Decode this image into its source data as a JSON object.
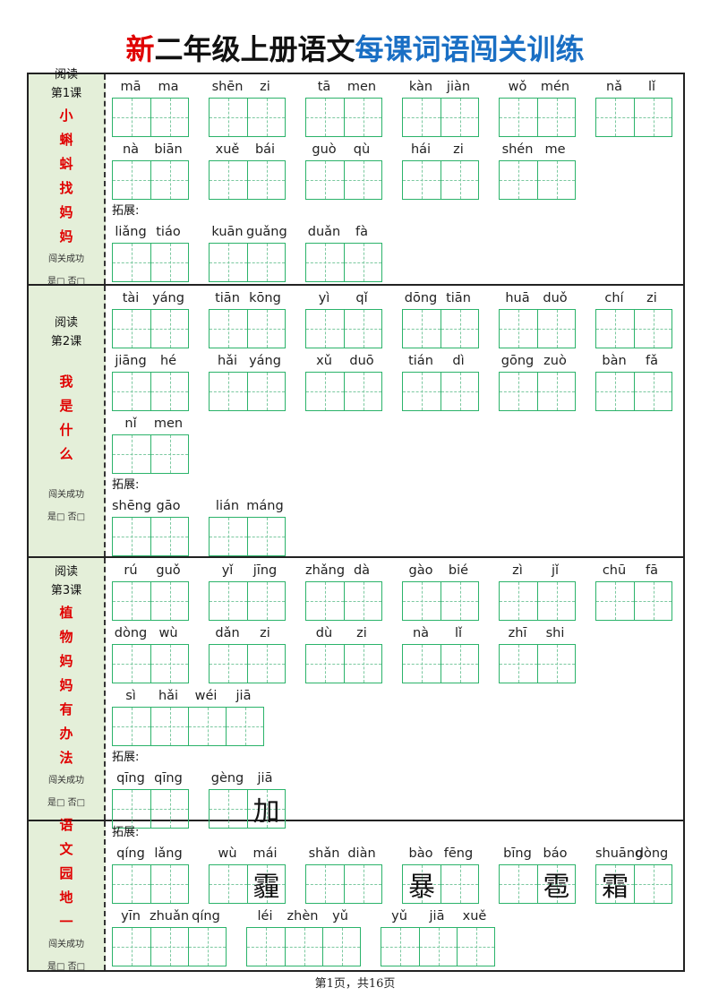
{
  "title": {
    "part1": "新",
    "part2": "二年级上册语文",
    "part3": "每课词语闯关训练"
  },
  "colors": {
    "red": "#e00000",
    "blue": "#1a6fc4",
    "grid": "#2bb36a",
    "side_bg": "#e4efd9"
  },
  "extension_label": "拓展:",
  "footer": "第1页，共16页",
  "sections": [
    {
      "reading": "阅读",
      "lesson": "第1课",
      "title_chars": [
        "小",
        "蝌",
        "蚪",
        "找",
        "妈",
        "妈"
      ],
      "success": "闯关成功",
      "yes_no": "是□  否□",
      "rows": [
        {
          "words": [
            {
              "py": [
                "mā",
                "ma"
              ],
              "chars": [
                "",
                ""
              ]
            },
            {
              "py": [
                "shēn",
                "zi"
              ],
              "chars": [
                "",
                ""
              ]
            },
            {
              "py": [
                "tā",
                "men"
              ],
              "chars": [
                "",
                ""
              ]
            },
            {
              "py": [
                "kàn",
                "jiàn"
              ],
              "chars": [
                "",
                ""
              ]
            },
            {
              "py": [
                "wǒ",
                "mén"
              ],
              "chars": [
                "",
                ""
              ]
            },
            {
              "py": [
                "nǎ",
                "lǐ"
              ],
              "chars": [
                "",
                ""
              ]
            }
          ]
        },
        {
          "words": [
            {
              "py": [
                "nà",
                "biān"
              ],
              "chars": [
                "",
                ""
              ]
            },
            {
              "py": [
                "xuě",
                "bái"
              ],
              "chars": [
                "",
                ""
              ]
            },
            {
              "py": [
                "guò",
                "qù"
              ],
              "chars": [
                "",
                ""
              ]
            },
            {
              "py": [
                "hái",
                "zi"
              ],
              "chars": [
                "",
                ""
              ]
            },
            {
              "py": [
                "shén",
                "me"
              ],
              "chars": [
                "",
                ""
              ]
            }
          ]
        },
        {
          "extension": true
        },
        {
          "words": [
            {
              "py": [
                "liǎng",
                "tiáo"
              ],
              "chars": [
                "",
                ""
              ]
            },
            {
              "py": [
                "kuān",
                "guǎng"
              ],
              "chars": [
                "",
                ""
              ]
            },
            {
              "py": [
                "duǎn",
                "fà"
              ],
              "chars": [
                "",
                ""
              ]
            }
          ]
        }
      ]
    },
    {
      "reading": "阅读",
      "lesson": "第2课",
      "title_chars": [
        "我",
        "是",
        "什",
        "么"
      ],
      "success": "闯关成功",
      "yes_no": "是□  否□",
      "rows": [
        {
          "words": [
            {
              "py": [
                "tài",
                "yáng"
              ],
              "chars": [
                "",
                ""
              ]
            },
            {
              "py": [
                "tiān",
                "kōng"
              ],
              "chars": [
                "",
                ""
              ]
            },
            {
              "py": [
                "yì",
                "qǐ"
              ],
              "chars": [
                "",
                ""
              ]
            },
            {
              "py": [
                "dōng",
                "tiān"
              ],
              "chars": [
                "",
                ""
              ]
            },
            {
              "py": [
                "huā",
                "duǒ"
              ],
              "chars": [
                "",
                ""
              ]
            },
            {
              "py": [
                "chí",
                "zi"
              ],
              "chars": [
                "",
                ""
              ]
            }
          ]
        },
        {
          "words": [
            {
              "py": [
                "jiāng",
                "hé"
              ],
              "chars": [
                "",
                ""
              ]
            },
            {
              "py": [
                "hǎi",
                "yáng"
              ],
              "chars": [
                "",
                ""
              ]
            },
            {
              "py": [
                "xǔ",
                "duō"
              ],
              "chars": [
                "",
                ""
              ]
            },
            {
              "py": [
                "tián",
                "dì"
              ],
              "chars": [
                "",
                ""
              ]
            },
            {
              "py": [
                "gōng",
                "zuò"
              ],
              "chars": [
                "",
                ""
              ]
            },
            {
              "py": [
                "bàn",
                "fǎ"
              ],
              "chars": [
                "",
                ""
              ]
            }
          ]
        },
        {
          "words": [
            {
              "py": [
                "nǐ",
                "men"
              ],
              "chars": [
                "",
                ""
              ]
            }
          ]
        },
        {
          "extension": true
        },
        {
          "words": [
            {
              "py": [
                "shēng",
                "gāo"
              ],
              "chars": [
                "",
                ""
              ]
            },
            {
              "py": [
                "lián",
                "máng"
              ],
              "chars": [
                "",
                ""
              ]
            }
          ]
        }
      ]
    },
    {
      "reading": "阅读",
      "lesson": "第3课",
      "title_chars": [
        "植",
        "物",
        "妈",
        "妈",
        "有",
        "办",
        "法"
      ],
      "success": "闯关成功",
      "yes_no": "是□  否□",
      "rows": [
        {
          "words": [
            {
              "py": [
                "rú",
                "guǒ"
              ],
              "chars": [
                "",
                ""
              ]
            },
            {
              "py": [
                "yǐ",
                "jīng"
              ],
              "chars": [
                "",
                ""
              ]
            },
            {
              "py": [
                "zhǎng",
                "dà"
              ],
              "chars": [
                "",
                ""
              ]
            },
            {
              "py": [
                "gào",
                "bié"
              ],
              "chars": [
                "",
                ""
              ]
            },
            {
              "py": [
                "zì",
                "jǐ"
              ],
              "chars": [
                "",
                ""
              ]
            },
            {
              "py": [
                "chū",
                "fā"
              ],
              "chars": [
                "",
                ""
              ]
            }
          ]
        },
        {
          "words": [
            {
              "py": [
                "dòng",
                "wù"
              ],
              "chars": [
                "",
                ""
              ]
            },
            {
              "py": [
                "dǎn",
                "zi"
              ],
              "chars": [
                "",
                ""
              ]
            },
            {
              "py": [
                "dù",
                "zi"
              ],
              "chars": [
                "",
                ""
              ]
            },
            {
              "py": [
                "nà",
                "lǐ"
              ],
              "chars": [
                "",
                ""
              ]
            },
            {
              "py": [
                "zhī",
                "shi"
              ],
              "chars": [
                "",
                ""
              ]
            }
          ]
        },
        {
          "words": [
            {
              "py": [
                "sì",
                "hǎi",
                "wéi",
                "jiā"
              ],
              "chars": [
                "",
                "",
                "",
                ""
              ]
            }
          ]
        },
        {
          "extension": true
        },
        {
          "words": [
            {
              "py": [
                "qīng",
                "qīng"
              ],
              "chars": [
                "",
                ""
              ]
            },
            {
              "py": [
                "gèng",
                "jiā"
              ],
              "chars": [
                "",
                "加"
              ]
            }
          ]
        }
      ]
    },
    {
      "reading": "",
      "lesson": "",
      "title_chars": [
        "语",
        "文",
        "园",
        "地",
        "一"
      ],
      "success": "闯关成功",
      "yes_no": "是□  否□",
      "rows": [
        {
          "extension": true
        },
        {
          "words": [
            {
              "py": [
                "qíng",
                "lǎng"
              ],
              "chars": [
                "",
                ""
              ]
            },
            {
              "py": [
                "wù",
                "mái"
              ],
              "chars": [
                "",
                "霾"
              ]
            },
            {
              "py": [
                "shǎn",
                "diàn"
              ],
              "chars": [
                "",
                ""
              ]
            },
            {
              "py": [
                "bào",
                "fēng"
              ],
              "chars": [
                "暴",
                ""
              ]
            },
            {
              "py": [
                "bīng",
                "báo"
              ],
              "chars": [
                "",
                "雹"
              ]
            },
            {
              "py": [
                "shuāng",
                "dòng"
              ],
              "chars": [
                "霜",
                ""
              ]
            }
          ]
        },
        {
          "words": [
            {
              "py": [
                "yīn",
                "zhuǎn",
                "qíng"
              ],
              "chars": [
                "",
                "",
                ""
              ]
            },
            {
              "py": [
                "léi",
                "zhèn",
                "yǔ"
              ],
              "chars": [
                "",
                "",
                ""
              ]
            },
            {
              "py": [
                "yǔ",
                "jiā",
                "xuě"
              ],
              "chars": [
                "",
                "",
                ""
              ]
            }
          ]
        }
      ]
    }
  ]
}
